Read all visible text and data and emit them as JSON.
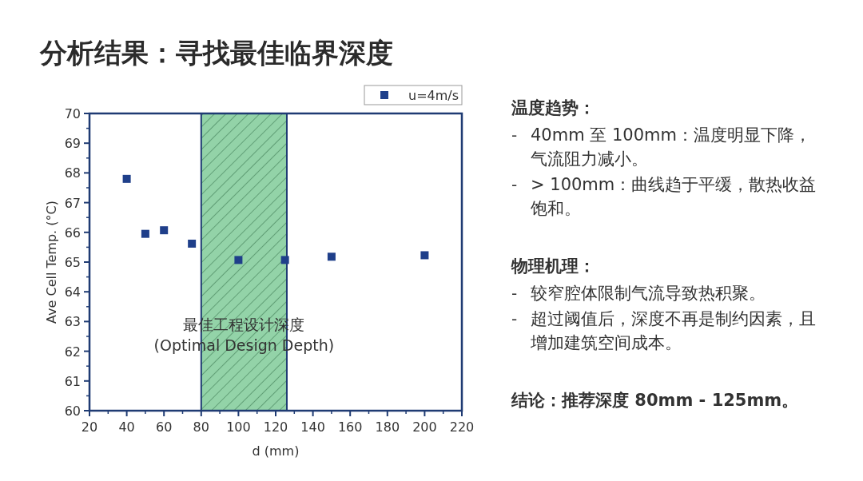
{
  "chart_data": {
    "type": "scatter",
    "title": "分析结果：寻找最佳临界深度",
    "xlabel": "d (mm)",
    "ylabel": "Ave Cell Temp. (°C)",
    "x": [
      40,
      50,
      60,
      75,
      100,
      125,
      150,
      200
    ],
    "series": [
      {
        "name": "u=4m/s",
        "color": "#1f3f8a",
        "values": [
          67.8,
          65.95,
          66.07,
          65.62,
          65.07,
          65.07,
          65.18,
          65.23
        ]
      }
    ],
    "marker": "square",
    "legend": "top right",
    "grid": false,
    "xlim": [
      20,
      220
    ],
    "xticks": [
      20,
      40,
      60,
      80,
      100,
      120,
      140,
      160,
      180,
      200,
      220
    ],
    "ylim": [
      60,
      70
    ],
    "yticks": [
      60,
      61,
      62,
      63,
      64,
      65,
      66,
      67,
      68,
      69,
      70
    ],
    "bands": [
      {
        "axis": "x",
        "from": 80,
        "to": 126,
        "label": "最佳工程设计深度\n(Optimal Design Depth)",
        "color": "#93d3a8"
      }
    ],
    "annotations": [
      "温度趋势：\n- 40mm 至 100mm：温度明显下降，气流阻力减小。\n- > 100mm：曲线趋于平缓，散热收益饱和。",
      "物理机理：\n- 较窄腔体限制气流导致热积聚。\n- 超过阈值后，深度不再是制约因素，且增加建筑空间成本。",
      "结论：推荐深度 80mm - 125mm。"
    ]
  }
}
